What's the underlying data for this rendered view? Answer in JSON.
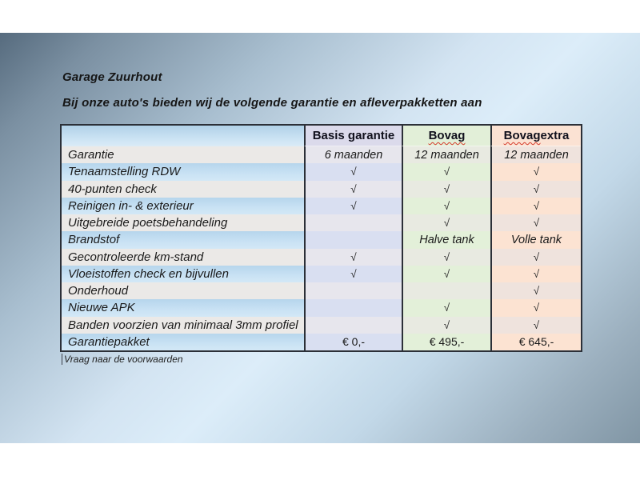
{
  "page": {
    "title": "Garage Zuurhout",
    "subtitle": "Bij onze auto's bieden wij de volgende garantie en afleverpakketten aan",
    "footer": "Vraag naar de voorwaarden"
  },
  "colors": {
    "background_dark": "#566b7e",
    "background_light": "#dcedf9",
    "header_basis": "#dbdaeb",
    "header_bovag": "#e2efd8",
    "header_extra": "#fbe2d3",
    "row_blue": "#c9e2f4",
    "row_gray": "#ebe9e7",
    "border": "#2c3038",
    "spellcheck_squiggle": "#d43a2a"
  },
  "table": {
    "check_symbol": "√",
    "columns": [
      {
        "label": ""
      },
      {
        "label": "Basis garantie"
      },
      {
        "label_main": "Bovag",
        "label_suffix": ""
      },
      {
        "label_main": "Bovag",
        "label_suffix": " extra"
      }
    ],
    "rows": [
      {
        "label": "Garantie",
        "basis": "6 maanden",
        "bovag": "12 maanden",
        "extra": "12 maanden"
      },
      {
        "label": "Tenaamstelling RDW",
        "basis": "√",
        "bovag": "√",
        "extra": "√"
      },
      {
        "label": "40-punten check",
        "basis": "√",
        "bovag": "√",
        "extra": "√"
      },
      {
        "label": "Reinigen in- & exterieur",
        "basis": "√",
        "bovag": "√",
        "extra": "√"
      },
      {
        "label": "Uitgebreide poetsbehandeling",
        "basis": "",
        "bovag": "√",
        "extra": "√"
      },
      {
        "label": "Brandstof",
        "basis": "",
        "bovag": "Halve tank",
        "extra": "Volle tank"
      },
      {
        "label": "Gecontroleerde km-stand",
        "basis": "√",
        "bovag": "√",
        "extra": "√"
      },
      {
        "label": "Vloeistoffen check en bijvullen",
        "basis": "√",
        "bovag": "√",
        "extra": "√"
      },
      {
        "label": "Onderhoud",
        "basis": "",
        "bovag": "",
        "extra": "√"
      },
      {
        "label": "Nieuwe APK",
        "basis": "",
        "bovag": "√",
        "extra": "√"
      },
      {
        "label": "Banden voorzien van minimaal 3mm profiel",
        "basis": "",
        "bovag": "√",
        "extra": "√"
      },
      {
        "label": "Garantiepakket",
        "basis": "€ 0,-",
        "bovag": "€ 495,-",
        "extra": "€ 645,-"
      }
    ]
  }
}
